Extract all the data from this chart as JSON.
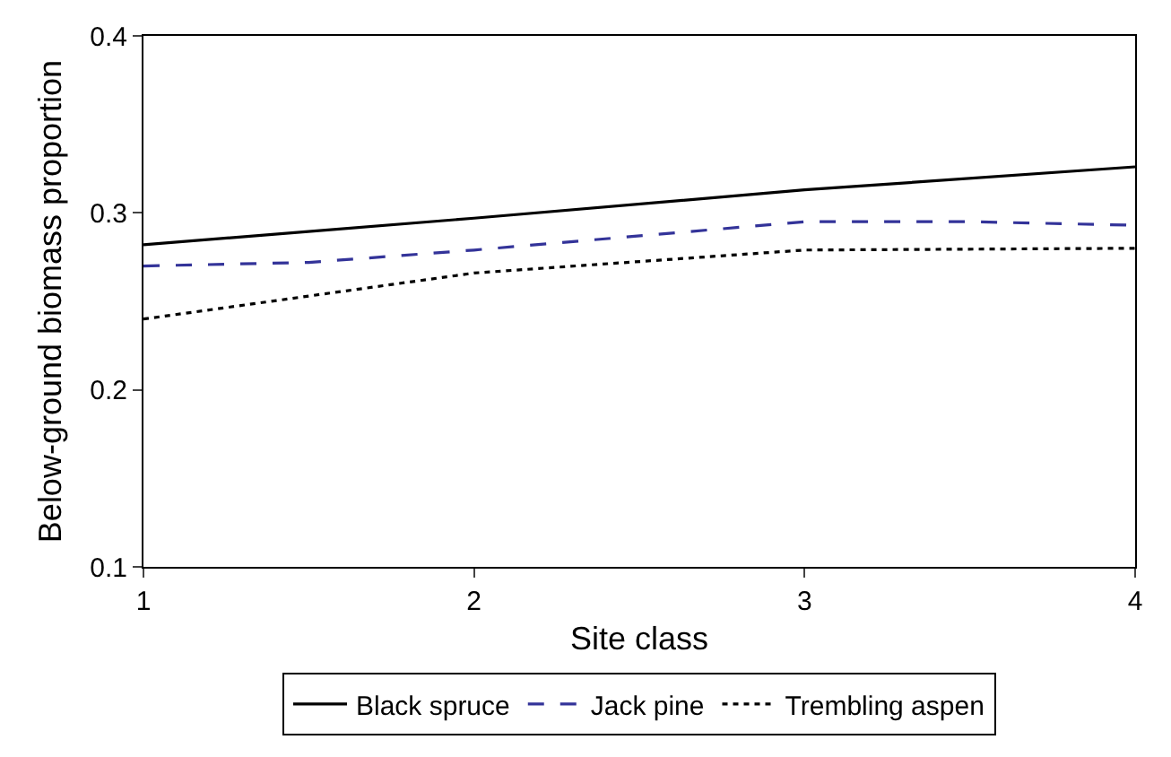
{
  "chart_data": {
    "type": "line",
    "xlabel": "Site class",
    "ylabel": "Below-ground biomass proportion",
    "x": [
      1,
      2,
      3,
      4
    ],
    "series": [
      {
        "name": "Black spruce",
        "color": "#000000",
        "line_style": "solid",
        "values": [
          0.282,
          0.297,
          0.313,
          0.326
        ]
      },
      {
        "name": "Jack pine",
        "color": "#333399",
        "line_style": "dashed",
        "x": [
          1,
          1.5,
          2,
          3,
          3.5,
          4
        ],
        "values": [
          0.27,
          0.272,
          0.279,
          0.295,
          0.295,
          0.293
        ]
      },
      {
        "name": "Trembling aspen",
        "color": "#000000",
        "line_style": "dotted",
        "values": [
          0.24,
          0.266,
          0.279,
          0.28
        ]
      }
    ],
    "xlim": [
      1,
      4
    ],
    "xticks": [
      1,
      2,
      3,
      4
    ],
    "ylim": [
      0.1,
      0.4
    ],
    "yticks": [
      0.1,
      0.2,
      0.3,
      0.4
    ],
    "grid": false,
    "legend": "bottom",
    "marker": "none"
  }
}
